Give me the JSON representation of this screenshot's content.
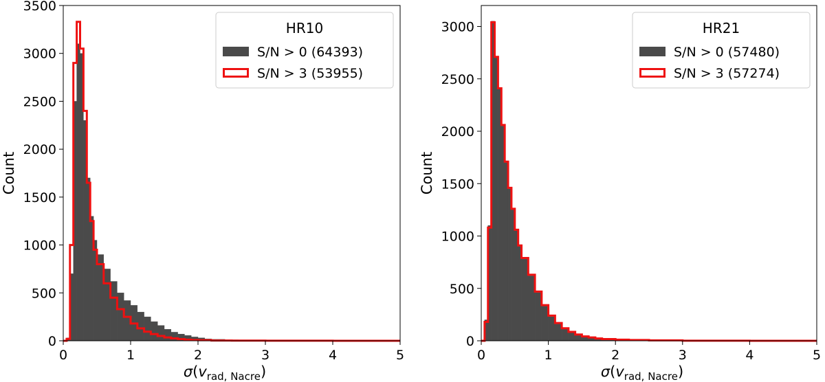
{
  "chart_data": [
    {
      "type": "bar",
      "histogram": true,
      "legend_title": "HR10",
      "legend_position": "top-right",
      "xlabel": "σ(v_rad, Nacre)",
      "ylabel": "Count",
      "xlim": [
        0,
        5
      ],
      "ylim": [
        0,
        3500
      ],
      "xticks": [
        0,
        1,
        2,
        3,
        4,
        5
      ],
      "yticks": [
        0,
        500,
        1000,
        1500,
        2000,
        2500,
        3000,
        3500
      ],
      "grid": false,
      "series": [
        {
          "name": "S/N > 0 (64393)",
          "style": "filled",
          "color": "#4a4a4a",
          "bins_x": [
            0,
            0.05,
            0.1,
            0.15,
            0.2,
            0.25,
            0.3,
            0.35,
            0.4,
            0.45,
            0.5,
            0.6,
            0.7,
            0.8,
            0.9,
            1.0,
            1.1,
            1.2,
            1.3,
            1.4,
            1.5,
            1.6,
            1.7,
            1.8,
            1.9,
            2.0,
            2.1,
            2.2,
            2.4,
            2.6,
            3.0,
            4.0,
            5.0
          ],
          "bins_y": [
            0,
            30,
            700,
            2500,
            3100,
            3000,
            2300,
            1700,
            1300,
            1050,
            900,
            750,
            620,
            500,
            420,
            370,
            300,
            250,
            200,
            160,
            120,
            90,
            70,
            55,
            40,
            30,
            20,
            15,
            10,
            5,
            3,
            0,
            0
          ]
        },
        {
          "name": "S/N > 3 (53955)",
          "style": "step",
          "color": "#ee1111",
          "bins_x": [
            0,
            0.05,
            0.1,
            0.15,
            0.2,
            0.25,
            0.3,
            0.35,
            0.4,
            0.45,
            0.5,
            0.6,
            0.7,
            0.8,
            0.9,
            1.0,
            1.1,
            1.2,
            1.3,
            1.4,
            1.5,
            1.6,
            1.7,
            1.8,
            1.9,
            2.0,
            2.2,
            2.5,
            3.0,
            4.0,
            5.0
          ],
          "bins_y": [
            0,
            20,
            1000,
            2900,
            3330,
            3050,
            2400,
            1650,
            1250,
            950,
            800,
            600,
            450,
            330,
            250,
            180,
            130,
            95,
            70,
            50,
            35,
            25,
            18,
            12,
            8,
            6,
            3,
            2,
            1,
            0,
            0
          ]
        }
      ]
    },
    {
      "type": "bar",
      "histogram": true,
      "legend_title": "HR21",
      "legend_position": "top-right",
      "xlabel": "σ(v_rad, Nacre)",
      "ylabel": "Count",
      "xlim": [
        0,
        5
      ],
      "ylim": [
        0,
        3200
      ],
      "xticks": [
        0,
        1,
        2,
        3,
        4,
        5
      ],
      "yticks": [
        0,
        500,
        1000,
        1500,
        2000,
        2500,
        3000
      ],
      "grid": false,
      "series": [
        {
          "name": "S/N > 0 (57480)",
          "style": "filled",
          "color": "#4a4a4a",
          "bins_x": [
            0,
            0.05,
            0.1,
            0.15,
            0.2,
            0.25,
            0.3,
            0.35,
            0.4,
            0.45,
            0.5,
            0.55,
            0.6,
            0.7,
            0.8,
            0.9,
            1.0,
            1.1,
            1.2,
            1.3,
            1.4,
            1.5,
            1.6,
            1.7,
            1.8,
            2.0,
            2.2,
            2.5,
            3.0,
            4.0,
            5.0
          ],
          "bins_y": [
            0,
            200,
            1100,
            3050,
            2700,
            2400,
            2050,
            1700,
            1450,
            1250,
            1050,
            900,
            780,
            620,
            460,
            330,
            230,
            160,
            110,
            80,
            55,
            40,
            30,
            20,
            15,
            10,
            6,
            3,
            1,
            0,
            0
          ]
        },
        {
          "name": "S/N > 3 (57274)",
          "style": "step",
          "color": "#ee1111",
          "bins_x": [
            0,
            0.05,
            0.1,
            0.15,
            0.2,
            0.25,
            0.3,
            0.35,
            0.4,
            0.45,
            0.5,
            0.55,
            0.6,
            0.7,
            0.8,
            0.9,
            1.0,
            1.1,
            1.2,
            1.3,
            1.4,
            1.5,
            1.6,
            1.7,
            1.8,
            2.0,
            2.2,
            2.5,
            3.0,
            4.0,
            5.0
          ],
          "bins_y": [
            0,
            180,
            1080,
            3040,
            2710,
            2410,
            2060,
            1710,
            1460,
            1260,
            1060,
            910,
            790,
            630,
            470,
            340,
            240,
            170,
            120,
            85,
            60,
            42,
            32,
            22,
            16,
            11,
            7,
            4,
            1,
            0,
            0
          ]
        }
      ]
    }
  ]
}
